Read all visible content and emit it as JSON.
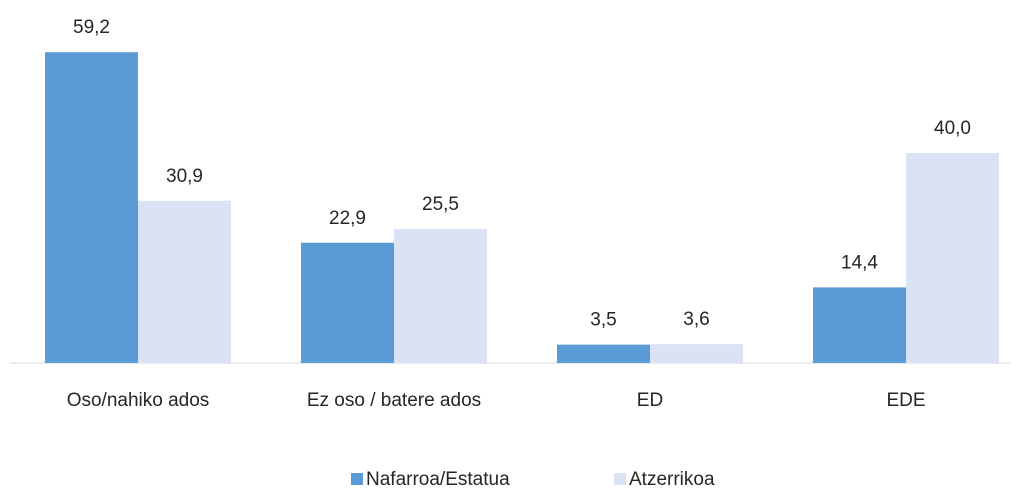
{
  "chart_data": {
    "type": "bar",
    "categories": [
      "Oso/nahiko ados",
      "Ez oso / batere ados",
      "ED",
      "EDE"
    ],
    "series": [
      {
        "name": "Nafarroa/Estatua",
        "color": "#5b9bd5",
        "values": [
          59.2,
          22.9,
          3.5,
          14.4
        ],
        "value_labels": [
          "59,2",
          "22,9",
          "3,5",
          "14,4"
        ]
      },
      {
        "name": "Atzerrikoa",
        "color": "#dae3f3",
        "values": [
          30.9,
          25.5,
          3.6,
          40.0
        ],
        "value_labels": [
          "30,9",
          "25,5",
          "3,6",
          "40,0"
        ]
      }
    ],
    "legend": "bottom"
  }
}
